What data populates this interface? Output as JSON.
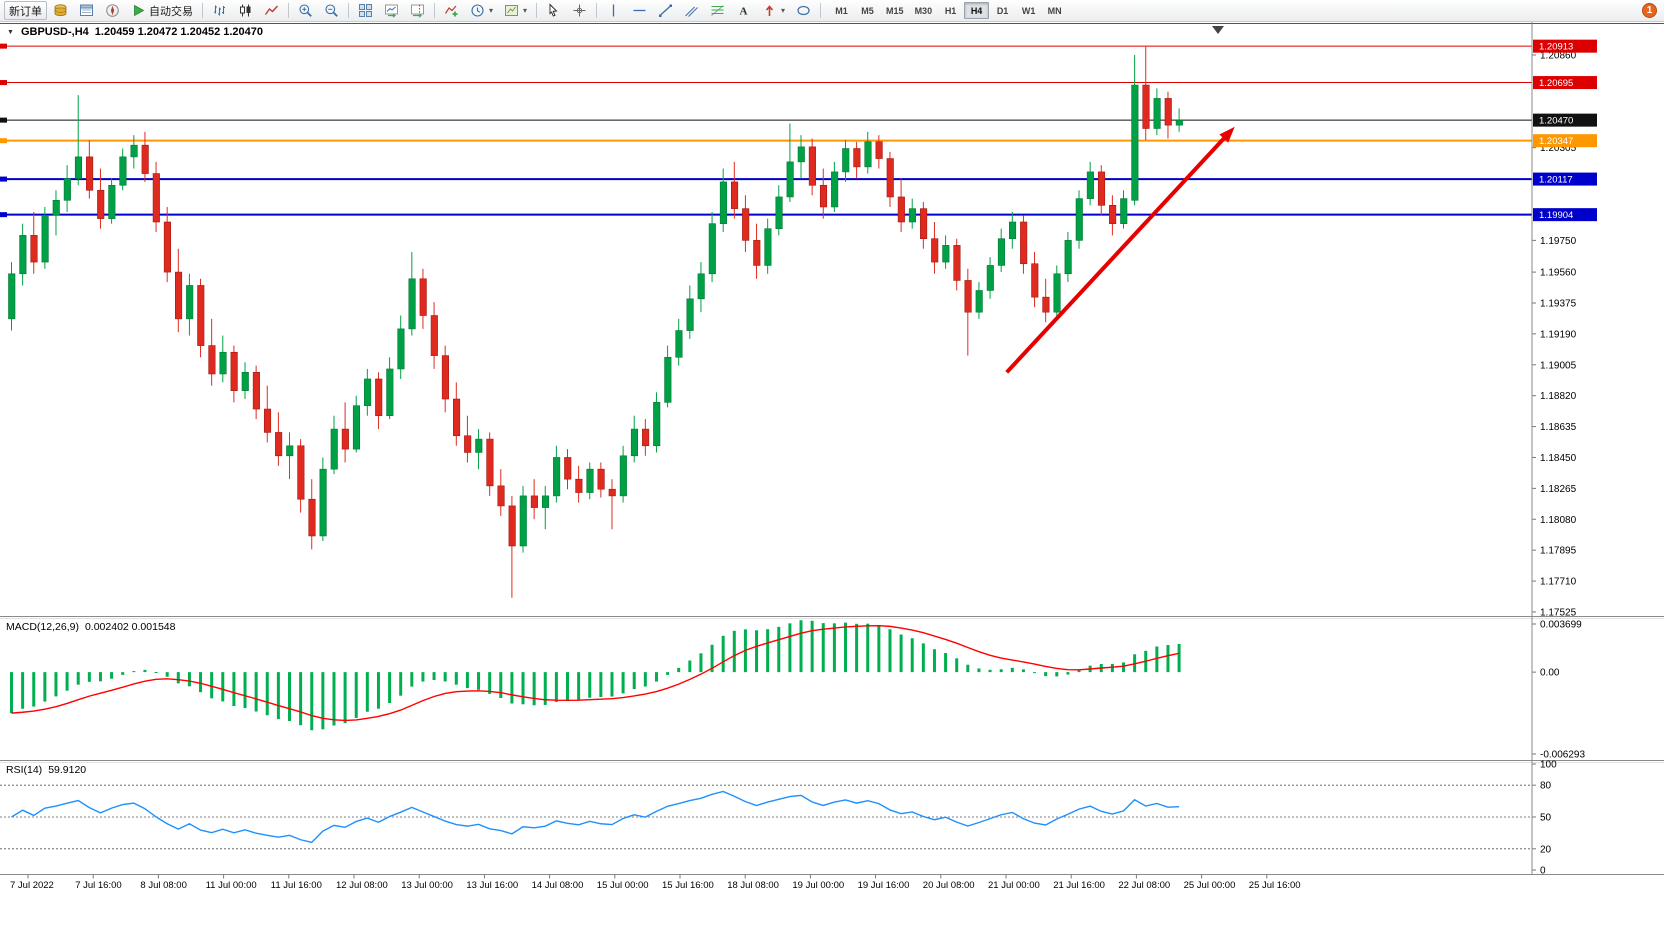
{
  "toolbar": {
    "new_order_label": "新订单",
    "auto_trading_label": "自动交易",
    "timeframes": [
      "M1",
      "M5",
      "M15",
      "M30",
      "H1",
      "H4",
      "D1",
      "W1",
      "MN"
    ],
    "active_timeframe": "H4",
    "notification_count": "1"
  },
  "chart": {
    "title": "GBPUSD-,H4",
    "ohlc": "1.20459 1.20472 1.20452 1.20470"
  },
  "indicators": {
    "macd_label": "MACD(12,26,9)",
    "macd_values": "0.002402 0.001548",
    "rsi_label": "RSI(14)",
    "rsi_value": "59.9120"
  },
  "chart_data": {
    "type": "candlestick",
    "symbol": "GBPUSD-",
    "timeframe": "H4",
    "current_ohlc": {
      "open": 1.20459,
      "high": 1.20472,
      "low": 1.20452,
      "close": 1.2047
    },
    "colors": {
      "up": "#00A146",
      "down": "#DF2B1F",
      "up_border": "#007A33",
      "down_border": "#A31712",
      "macd_hist": "#00B050",
      "macd_signal": "#FF0000",
      "rsi": "#1E90FF"
    },
    "y_axis_labels": [
      1.2086,
      1.20305,
      1.1975,
      1.1956,
      1.19375,
      1.1919,
      1.19005,
      1.1882,
      1.18635,
      1.1845,
      1.18265,
      1.1808,
      1.17895,
      1.1771,
      1.17525
    ],
    "price_lines": [
      {
        "price": 1.20913,
        "label": "1.20913",
        "color": "#DD0000",
        "width": 1
      },
      {
        "price": 1.20695,
        "label": "1.20695",
        "color": "#DD0000",
        "width": 1
      },
      {
        "price": 1.2047,
        "label": "1.20470",
        "color": "#111111",
        "width": 1
      },
      {
        "price": 1.20347,
        "label": "1.20347",
        "color": "#FF9800",
        "width": 2
      },
      {
        "price": 1.20117,
        "label": "1.20117",
        "color": "#0000CC",
        "width": 2
      },
      {
        "price": 1.19904,
        "label": "1.19904",
        "color": "#0000CC",
        "width": 2
      }
    ],
    "arrow": {
      "from": {
        "index": 89.5,
        "price": 1.1896
      },
      "to": {
        "index": 110,
        "price": 1.2043
      },
      "color": "#E60000"
    },
    "x_axis_labels": [
      "7 Jul 2022",
      "7 Jul 16:00",
      "8 Jul 08:00",
      "11 Jul 00:00",
      "11 Jul 16:00",
      "12 Jul 08:00",
      "13 Jul 00:00",
      "13 Jul 16:00",
      "14 Jul 08:00",
      "15 Jul 00:00",
      "15 Jul 16:00",
      "18 Jul 08:00",
      "19 Jul 00:00",
      "19 Jul 16:00",
      "20 Jul 08:00",
      "21 Jul 00:00",
      "21 Jul 16:00",
      "22 Jul 08:00",
      "25 Jul 00:00",
      "25 Jul 16:00"
    ],
    "macd": {
      "params": [
        12,
        26,
        9
      ],
      "display_macd": 0.002402,
      "display_signal": 0.001548,
      "scale_max": 0.003699,
      "scale_min": -0.006293,
      "scale_labels": [
        "0.003699",
        "0.00",
        "-0.006293"
      ]
    },
    "rsi": {
      "period": 14,
      "display_value": 59.912,
      "levels": [
        80,
        50,
        20
      ],
      "scale_labels": [
        "100",
        "80",
        "50",
        "20",
        "0"
      ]
    },
    "candles": [
      [
        1.1928,
        1.1962,
        1.1921,
        1.1955
      ],
      [
        1.1955,
        1.1985,
        1.1948,
        1.1978
      ],
      [
        1.1978,
        1.1992,
        1.1955,
        1.1962
      ],
      [
        1.1962,
        1.1995,
        1.1958,
        1.199
      ],
      [
        1.199,
        1.2005,
        1.1978,
        1.1999
      ],
      [
        1.1999,
        1.202,
        1.1992,
        1.2012
      ],
      [
        1.2012,
        1.2062,
        1.2008,
        1.2025
      ],
      [
        1.2025,
        1.2035,
        1.2,
        1.2005
      ],
      [
        1.2005,
        1.2018,
        1.1982,
        1.1988
      ],
      [
        1.1988,
        1.2012,
        1.1985,
        1.2008
      ],
      [
        1.2008,
        1.203,
        1.2005,
        1.2025
      ],
      [
        1.2025,
        1.2038,
        1.2018,
        1.2032
      ],
      [
        1.2032,
        1.204,
        1.201,
        1.2015
      ],
      [
        1.2015,
        1.2022,
        1.198,
        1.1986
      ],
      [
        1.1986,
        1.1995,
        1.195,
        1.1956
      ],
      [
        1.1956,
        1.197,
        1.192,
        1.1928
      ],
      [
        1.1928,
        1.1955,
        1.1918,
        1.1948
      ],
      [
        1.1948,
        1.1952,
        1.1905,
        1.1912
      ],
      [
        1.1912,
        1.1928,
        1.1888,
        1.1895
      ],
      [
        1.1895,
        1.1918,
        1.189,
        1.1908
      ],
      [
        1.1908,
        1.1912,
        1.1878,
        1.1885
      ],
      [
        1.1885,
        1.1902,
        1.188,
        1.1896
      ],
      [
        1.1896,
        1.19,
        1.1868,
        1.1874
      ],
      [
        1.1874,
        1.1888,
        1.1854,
        1.186
      ],
      [
        1.186,
        1.1872,
        1.184,
        1.1846
      ],
      [
        1.1846,
        1.186,
        1.1832,
        1.1852
      ],
      [
        1.1852,
        1.1856,
        1.1812,
        1.182
      ],
      [
        1.182,
        1.1832,
        1.179,
        1.1798
      ],
      [
        1.1798,
        1.1845,
        1.1795,
        1.1838
      ],
      [
        1.1838,
        1.187,
        1.1835,
        1.1862
      ],
      [
        1.1862,
        1.1878,
        1.1842,
        1.185
      ],
      [
        1.185,
        1.1882,
        1.1848,
        1.1876
      ],
      [
        1.1876,
        1.1898,
        1.187,
        1.1892
      ],
      [
        1.1892,
        1.1896,
        1.1862,
        1.187
      ],
      [
        1.187,
        1.1905,
        1.1868,
        1.1898
      ],
      [
        1.1898,
        1.193,
        1.1892,
        1.1922
      ],
      [
        1.1922,
        1.1968,
        1.1918,
        1.1952
      ],
      [
        1.1952,
        1.1958,
        1.1922,
        1.193
      ],
      [
        1.193,
        1.1938,
        1.1898,
        1.1906
      ],
      [
        1.1906,
        1.1912,
        1.1872,
        1.188
      ],
      [
        1.188,
        1.189,
        1.1852,
        1.1858
      ],
      [
        1.1858,
        1.187,
        1.1842,
        1.1848
      ],
      [
        1.1848,
        1.1862,
        1.1838,
        1.1856
      ],
      [
        1.1856,
        1.186,
        1.1822,
        1.1828
      ],
      [
        1.1828,
        1.1838,
        1.181,
        1.1816
      ],
      [
        1.1816,
        1.1822,
        1.1761,
        1.1792
      ],
      [
        1.1792,
        1.1828,
        1.1788,
        1.1822
      ],
      [
        1.1822,
        1.1832,
        1.1808,
        1.1815
      ],
      [
        1.1815,
        1.1828,
        1.1802,
        1.1822
      ],
      [
        1.1822,
        1.1852,
        1.1818,
        1.1845
      ],
      [
        1.1845,
        1.185,
        1.1826,
        1.1832
      ],
      [
        1.1832,
        1.184,
        1.1818,
        1.1824
      ],
      [
        1.1824,
        1.1842,
        1.182,
        1.1838
      ],
      [
        1.1838,
        1.1842,
        1.1821,
        1.1826
      ],
      [
        1.1826,
        1.1832,
        1.1802,
        1.1822
      ],
      [
        1.1822,
        1.1852,
        1.1818,
        1.1846
      ],
      [
        1.1846,
        1.187,
        1.1842,
        1.1862
      ],
      [
        1.1862,
        1.1868,
        1.1846,
        1.1852
      ],
      [
        1.1852,
        1.1884,
        1.1848,
        1.1878
      ],
      [
        1.1878,
        1.1912,
        1.1875,
        1.1905
      ],
      [
        1.1905,
        1.1928,
        1.19,
        1.1921
      ],
      [
        1.1921,
        1.1948,
        1.1916,
        1.194
      ],
      [
        1.194,
        1.1962,
        1.1932,
        1.1955
      ],
      [
        1.1955,
        1.1992,
        1.195,
        1.1985
      ],
      [
        1.1985,
        1.2018,
        1.198,
        1.201
      ],
      [
        1.201,
        1.2022,
        1.1988,
        1.1994
      ],
      [
        1.1994,
        1.2002,
        1.1968,
        1.1975
      ],
      [
        1.1975,
        1.1985,
        1.1952,
        1.196
      ],
      [
        1.196,
        1.1988,
        1.1955,
        1.1982
      ],
      [
        1.1982,
        1.2008,
        1.1978,
        1.2001
      ],
      [
        1.2001,
        1.2045,
        1.1998,
        1.2022
      ],
      [
        1.2022,
        1.2038,
        1.2012,
        1.2031
      ],
      [
        1.2031,
        1.2036,
        1.2002,
        1.2008
      ],
      [
        1.2008,
        1.2018,
        1.1988,
        1.1995
      ],
      [
        1.1995,
        1.2022,
        1.1992,
        1.2016
      ],
      [
        1.2016,
        1.2035,
        1.201,
        1.203
      ],
      [
        1.203,
        1.2034,
        1.2012,
        1.2019
      ],
      [
        1.2019,
        1.204,
        1.2015,
        1.2034
      ],
      [
        1.2034,
        1.2038,
        1.2018,
        1.2024
      ],
      [
        1.2024,
        1.2028,
        1.1995,
        1.2001
      ],
      [
        1.2001,
        1.2012,
        1.198,
        1.1986
      ],
      [
        1.1986,
        1.2,
        1.1982,
        1.1994
      ],
      [
        1.1994,
        1.1998,
        1.197,
        1.1976
      ],
      [
        1.1976,
        1.1986,
        1.1955,
        1.1962
      ],
      [
        1.1962,
        1.1978,
        1.1958,
        1.1972
      ],
      [
        1.1972,
        1.1976,
        1.1945,
        1.1951
      ],
      [
        1.1951,
        1.1958,
        1.1906,
        1.1932
      ],
      [
        1.1932,
        1.195,
        1.1928,
        1.1945
      ],
      [
        1.1945,
        1.1965,
        1.194,
        1.196
      ],
      [
        1.196,
        1.1982,
        1.1956,
        1.1976
      ],
      [
        1.1976,
        1.1992,
        1.197,
        1.1986
      ],
      [
        1.1986,
        1.199,
        1.1955,
        1.1961
      ],
      [
        1.1961,
        1.1968,
        1.1935,
        1.1941
      ],
      [
        1.1941,
        1.1952,
        1.1926,
        1.1932
      ],
      [
        1.1932,
        1.196,
        1.1928,
        1.1955
      ],
      [
        1.1955,
        1.198,
        1.195,
        1.1975
      ],
      [
        1.1975,
        1.2005,
        1.197,
        1.2
      ],
      [
        1.2,
        1.2022,
        1.1996,
        1.2016
      ],
      [
        1.2016,
        1.202,
        1.199,
        1.1996
      ],
      [
        1.1996,
        1.2002,
        1.1978,
        1.1985
      ],
      [
        1.1985,
        1.2005,
        1.1982,
        1.2
      ],
      [
        1.1999,
        1.2086,
        1.1996,
        1.2068
      ],
      [
        1.2068,
        1.2091,
        1.2035,
        1.2042
      ],
      [
        1.2042,
        1.2066,
        1.2038,
        1.206
      ],
      [
        1.206,
        1.2064,
        1.2036,
        1.2044
      ],
      [
        1.2044,
        1.2054,
        1.204,
        1.2047
      ]
    ]
  }
}
